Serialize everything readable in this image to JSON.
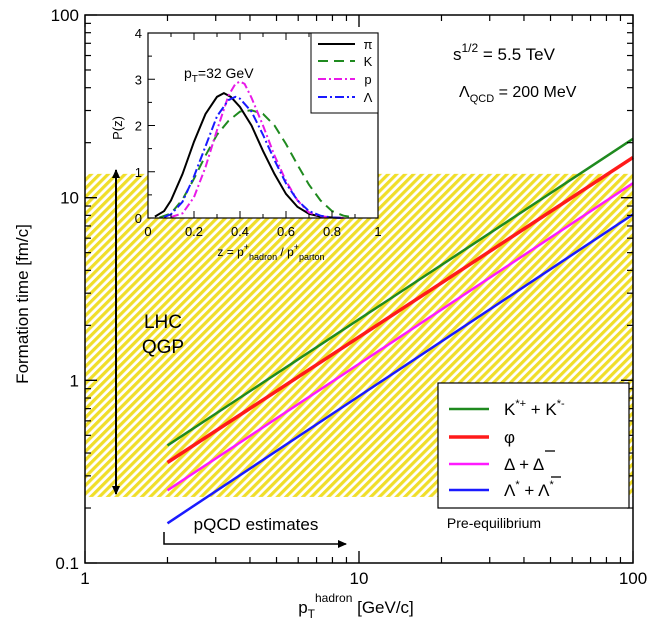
{
  "chart_data": [
    {
      "type": "line",
      "xlabel": "p_T^hadron [GeV/c]",
      "xlabel_parts": {
        "main": "p",
        "sub": "T",
        "sup": "hadron",
        "unit": " [GeV/c]"
      },
      "ylabel": "Formation time [fm/c]",
      "x_scale": "log",
      "y_scale": "log",
      "xlim": [
        1,
        100
      ],
      "ylim": [
        0.1,
        100
      ],
      "x_ticks": [
        "1",
        "10",
        "100"
      ],
      "y_ticks": [
        "0.1",
        "1",
        "10",
        "100"
      ],
      "grid": false,
      "legend_position": "bottom-right",
      "qgp_band": {
        "ymin": 0.23,
        "ymax": 13.5,
        "color": "#f0de2a",
        "label_line1": "LHC",
        "label_line2": "QGP"
      },
      "annotations": {
        "energy": {
          "lhs": "s",
          "sup": "1/2",
          "rhs": " = 5.5 TeV"
        },
        "lambda": {
          "sym": "Λ",
          "sub": "QCD",
          "rhs": " = 200 MeV"
        },
        "pqcd": "pQCD estimates",
        "preeq": "Pre-equilibrium"
      },
      "series": [
        {
          "name": "K*+ + K*-",
          "color": "#1f8a1f",
          "x": [
            2,
            100
          ],
          "y": [
            0.44,
            21
          ]
        },
        {
          "name": "φ",
          "color": "#ff1a1a",
          "x": [
            2,
            100
          ],
          "y": [
            0.355,
            16.6
          ]
        },
        {
          "name": "Δ + Δ̄",
          "color": "#ff1aff",
          "x": [
            2,
            100
          ],
          "y": [
            0.25,
            12.0
          ]
        },
        {
          "name": "Λ* + Λ̄*",
          "color": "#1a1aff",
          "x": [
            2,
            100
          ],
          "y": [
            0.165,
            8.1
          ]
        }
      ]
    },
    {
      "type": "line",
      "title": "p_T=32 GeV",
      "xlabel": "z = p+hadron / p+parton",
      "ylabel": "P(z)",
      "xlim": [
        0,
        1
      ],
      "ylim": [
        0,
        4
      ],
      "x_ticks": [
        "0",
        "0.2",
        "0.4",
        "0.6",
        "0.8",
        "1"
      ],
      "y_ticks": [
        "0",
        "1",
        "2",
        "3",
        "4"
      ],
      "series": [
        {
          "name": "π",
          "color": "#000000",
          "dash": "",
          "x": [
            0.03,
            0.07,
            0.1,
            0.15,
            0.2,
            0.25,
            0.3,
            0.33,
            0.36,
            0.4,
            0.45,
            0.5,
            0.55,
            0.6,
            0.65,
            0.7,
            0.75,
            0.8,
            0.85
          ],
          "y": [
            0.03,
            0.15,
            0.38,
            0.95,
            1.65,
            2.25,
            2.62,
            2.7,
            2.62,
            2.4,
            2.0,
            1.45,
            0.95,
            0.52,
            0.24,
            0.09,
            0.03,
            0.01,
            0.0
          ]
        },
        {
          "name": "K",
          "color": "#1f8a1f",
          "dash": "10,6",
          "x": [
            0.05,
            0.1,
            0.15,
            0.2,
            0.25,
            0.3,
            0.35,
            0.4,
            0.45,
            0.5,
            0.55,
            0.6,
            0.65,
            0.7,
            0.75,
            0.8,
            0.85,
            0.9
          ],
          "y": [
            0.01,
            0.1,
            0.4,
            0.85,
            1.35,
            1.8,
            2.1,
            2.3,
            2.33,
            2.25,
            2.0,
            1.6,
            1.15,
            0.72,
            0.38,
            0.15,
            0.05,
            0.01
          ]
        },
        {
          "name": "p",
          "color": "#e81ae8",
          "dash": "8,3,2,3",
          "x": [
            0.1,
            0.15,
            0.2,
            0.25,
            0.3,
            0.35,
            0.38,
            0.4,
            0.42,
            0.45,
            0.5,
            0.55,
            0.6,
            0.65,
            0.7,
            0.75,
            0.8,
            0.85
          ],
          "y": [
            0.02,
            0.1,
            0.45,
            1.1,
            1.9,
            2.65,
            2.9,
            2.95,
            2.9,
            2.6,
            2.0,
            1.35,
            0.8,
            0.38,
            0.12,
            0.04,
            0.01,
            0.0
          ]
        },
        {
          "name": "Λ",
          "color": "#1a1aff",
          "dash": "9,3,2,3",
          "x": [
            0.07,
            0.1,
            0.15,
            0.2,
            0.25,
            0.3,
            0.35,
            0.38,
            0.4,
            0.45,
            0.5,
            0.55,
            0.6,
            0.65,
            0.7,
            0.75,
            0.8,
            0.85
          ],
          "y": [
            0.02,
            0.08,
            0.35,
            0.9,
            1.55,
            2.2,
            2.55,
            2.62,
            2.58,
            2.3,
            1.8,
            1.25,
            0.75,
            0.38,
            0.15,
            0.05,
            0.01,
            0.0
          ]
        }
      ]
    }
  ]
}
